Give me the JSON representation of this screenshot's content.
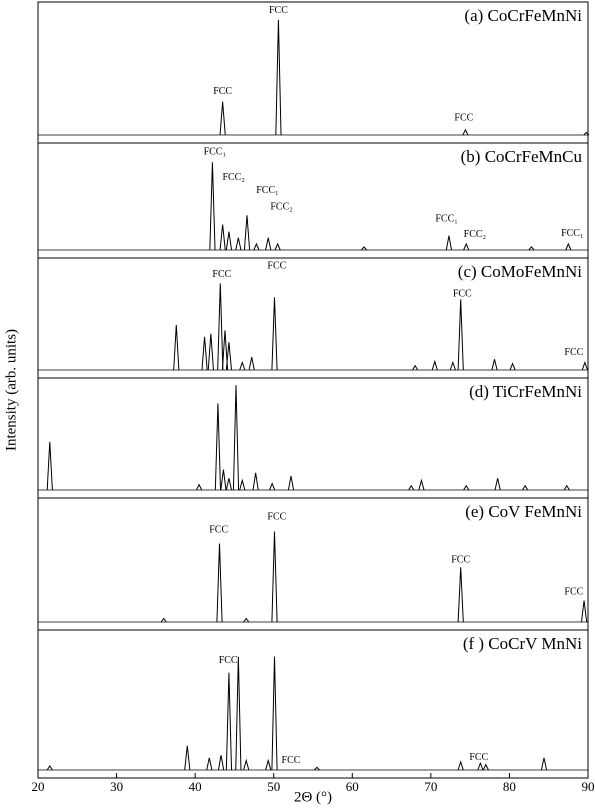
{
  "chart_data": {
    "type": "line",
    "xlabel": "2Θ (°)",
    "ylabel": "Intensity (arb. units)",
    "xlim": [
      20,
      90
    ],
    "xticks": [
      20,
      30,
      40,
      50,
      60,
      70,
      80,
      90
    ],
    "ylim": [
      0,
      100
    ],
    "color": "#000000",
    "series": [
      {
        "name": "(a) CoCrFeMnNi",
        "x": [
          43.5,
          50.6,
          74.4,
          89.8
        ],
        "values": [
          26,
          90,
          4,
          2
        ],
        "annotations": [
          {
            "text": "FCC",
            "x": 43.5,
            "y": 34
          },
          {
            "text": "FCC",
            "x": 50.6,
            "y": 97
          },
          {
            "text": "FCC",
            "x": 74.2,
            "y": 13
          }
        ]
      },
      {
        "name": "(b) CoCrFeMnCu",
        "x": [
          42.2,
          43.5,
          44.3,
          45.5,
          46.6,
          47.8,
          49.3,
          50.5,
          61.5,
          72.3,
          74.5,
          82.8,
          87.5
        ],
        "values": [
          86,
          25,
          18,
          12,
          34,
          6,
          12,
          6,
          3,
          14,
          6,
          3,
          6
        ],
        "annotations": [
          {
            "text": "FCC₁",
            "x": 42.5,
            "y": 96
          },
          {
            "text": "FCC₂",
            "x": 44.9,
            "y": 71
          },
          {
            "text": "FCC₁",
            "x": 49.2,
            "y": 58
          },
          {
            "text": "FCC₂",
            "x": 51.0,
            "y": 42
          },
          {
            "text": "FCC₁",
            "x": 72.0,
            "y": 30
          },
          {
            "text": "FCC₂",
            "x": 75.6,
            "y": 15
          },
          {
            "text": "FCC₁",
            "x": 88.0,
            "y": 16
          }
        ]
      },
      {
        "name": "(c) CoMoFeMnNi",
        "x": [
          37.6,
          41.2,
          42.0,
          43.2,
          43.8,
          44.3,
          46.0,
          47.2,
          50.1,
          68.0,
          70.5,
          72.8,
          73.8,
          78.1,
          80.4,
          89.6
        ],
        "values": [
          42,
          31,
          34,
          81,
          37,
          26,
          7,
          12,
          68,
          4,
          8,
          7,
          66,
          10,
          6,
          7
        ],
        "annotations": [
          {
            "text": "FCC",
            "x": 43.4,
            "y": 89
          },
          {
            "text": "FCC",
            "x": 50.4,
            "y": 97
          },
          {
            "text": "FCC",
            "x": 74.0,
            "y": 71
          },
          {
            "text": "FCC",
            "x": 88.2,
            "y": 16
          }
        ]
      },
      {
        "name": "(d) TiCrFeMnNi",
        "x": [
          21.5,
          40.5,
          42.9,
          43.6,
          44.3,
          45.2,
          46.0,
          47.7,
          49.8,
          52.2,
          67.5,
          68.8,
          74.5,
          78.5,
          82.0,
          87.3
        ],
        "values": [
          45,
          5,
          81,
          19,
          11,
          98,
          9,
          16,
          6,
          13,
          4,
          9,
          4,
          11,
          4,
          4
        ],
        "annotations": []
      },
      {
        "name": "(e) CoV FeMnNi",
        "x": [
          36.0,
          43.1,
          46.5,
          50.1,
          73.8,
          89.5
        ],
        "values": [
          3,
          66,
          3,
          76,
          46,
          18
        ],
        "annotations": [
          {
            "text": "FCC",
            "x": 43.0,
            "y": 77
          },
          {
            "text": "FCC",
            "x": 50.4,
            "y": 88
          },
          {
            "text": "FCC",
            "x": 73.8,
            "y": 52
          },
          {
            "text": "FCC",
            "x": 88.2,
            "y": 25
          }
        ]
      },
      {
        "name": "(f ) CoCrV MnNi",
        "x": [
          21.5,
          39.0,
          41.8,
          43.3,
          44.3,
          45.5,
          46.5,
          49.3,
          50.1,
          55.5,
          73.8,
          76.3,
          77.0,
          84.4
        ],
        "values": [
          3,
          18,
          9,
          11,
          72,
          84,
          7,
          7,
          84,
          2,
          6,
          5,
          4,
          9
        ],
        "annotations": [
          {
            "text": "FCC",
            "x": 44.2,
            "y": 81
          },
          {
            "text": "FCC",
            "x": 52.2,
            "y": 7
          },
          {
            "text": "FCC",
            "x": 76.1,
            "y": 9
          }
        ]
      }
    ]
  }
}
